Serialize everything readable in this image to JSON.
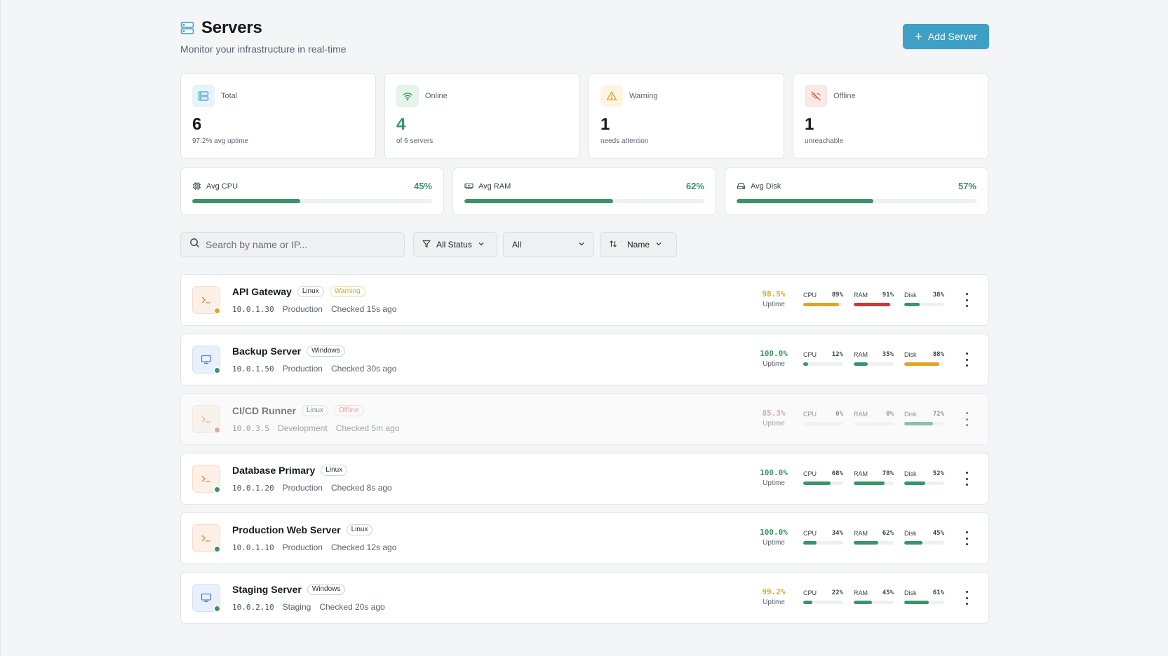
{
  "header": {
    "title": "Servers",
    "subtitle": "Monitor your infrastructure in real-time",
    "add_button": "Add Server",
    "add_icon": "+"
  },
  "stats": [
    {
      "label": "Total",
      "value": "6",
      "sub": "97.2% avg uptime",
      "icon": "server-icon",
      "color": "#3ea0c4",
      "bg": "#e6f3f8",
      "value_color": "#16191d"
    },
    {
      "label": "Online",
      "value": "4",
      "sub": "of 6 servers",
      "icon": "wifi-icon",
      "color": "#3a9468",
      "bg": "#e6f4ec",
      "value_color": "#3a9468"
    },
    {
      "label": "Warning",
      "value": "1",
      "sub": "needs attention",
      "icon": "warning-icon",
      "color": "#e0a526",
      "bg": "#fdf5e3",
      "value_color": "#16191d"
    },
    {
      "label": "Offline",
      "value": "1",
      "sub": "unreachable",
      "icon": "wifi-off-icon",
      "color": "#d7635a",
      "bg": "#fbe9e7",
      "value_color": "#16191d"
    }
  ],
  "resources": [
    {
      "label": "Avg CPU",
      "value": "45%",
      "fraction": 0.45,
      "icon": "cpu-icon"
    },
    {
      "label": "Avg RAM",
      "value": "62%",
      "fraction": 0.62,
      "icon": "memory-icon"
    },
    {
      "label": "Avg Disk",
      "value": "57%",
      "fraction": 0.57,
      "icon": "disk-icon"
    }
  ],
  "filters": {
    "search_placeholder": "Search by name or IP...",
    "status_label": "All Status",
    "type_label": "All",
    "sort_label": "Name"
  },
  "colors": {
    "ok": "#3a9468",
    "warning": "#e0a526",
    "danger": "#c9393a",
    "offline_dot": "#d7635a"
  },
  "servers": [
    {
      "name": "API Gateway",
      "os": "Linux",
      "status_badge": "Warning",
      "ip": "10.0.1.30",
      "env": "Production",
      "checked": "Checked 15s ago",
      "uptime": "98.5%",
      "uptime_label": "Uptime",
      "status": "warning",
      "metrics": [
        {
          "label": "CPU",
          "value": "89%",
          "fraction": 0.89
        },
        {
          "label": "RAM",
          "value": "91%",
          "fraction": 0.91
        },
        {
          "label": "Disk",
          "value": "38%",
          "fraction": 0.38
        }
      ]
    },
    {
      "name": "Backup Server",
      "os": "Windows",
      "status_badge": "",
      "ip": "10.0.1.50",
      "env": "Production",
      "checked": "Checked 30s ago",
      "uptime": "100.0%",
      "uptime_label": "Uptime",
      "status": "online",
      "metrics": [
        {
          "label": "CPU",
          "value": "12%",
          "fraction": 0.12
        },
        {
          "label": "RAM",
          "value": "35%",
          "fraction": 0.35
        },
        {
          "label": "Disk",
          "value": "88%",
          "fraction": 0.88
        }
      ]
    },
    {
      "name": "CI/CD Runner",
      "os": "Linux",
      "status_badge": "Offline",
      "ip": "10.0.3.5",
      "env": "Development",
      "checked": "Checked 5m ago",
      "uptime": "85.3%",
      "uptime_label": "Uptime",
      "status": "offline",
      "metrics": [
        {
          "label": "CPU",
          "value": "0%",
          "fraction": 0
        },
        {
          "label": "RAM",
          "value": "0%",
          "fraction": 0
        },
        {
          "label": "Disk",
          "value": "72%",
          "fraction": 0.72
        }
      ]
    },
    {
      "name": "Database Primary",
      "os": "Linux",
      "status_badge": "",
      "ip": "10.0.1.20",
      "env": "Production",
      "checked": "Checked 8s ago",
      "uptime": "100.0%",
      "uptime_label": "Uptime",
      "status": "online",
      "metrics": [
        {
          "label": "CPU",
          "value": "68%",
          "fraction": 0.68
        },
        {
          "label": "RAM",
          "value": "78%",
          "fraction": 0.78
        },
        {
          "label": "Disk",
          "value": "52%",
          "fraction": 0.52
        }
      ]
    },
    {
      "name": "Production Web Server",
      "os": "Linux",
      "status_badge": "",
      "ip": "10.0.1.10",
      "env": "Production",
      "checked": "Checked 12s ago",
      "uptime": "100.0%",
      "uptime_label": "Uptime",
      "status": "online",
      "metrics": [
        {
          "label": "CPU",
          "value": "34%",
          "fraction": 0.34
        },
        {
          "label": "RAM",
          "value": "62%",
          "fraction": 0.62
        },
        {
          "label": "Disk",
          "value": "45%",
          "fraction": 0.45
        }
      ]
    },
    {
      "name": "Staging Server",
      "os": "Windows",
      "status_badge": "",
      "ip": "10.0.2.10",
      "env": "Staging",
      "checked": "Checked 20s ago",
      "uptime": "99.2%",
      "uptime_label": "Uptime",
      "status": "online",
      "metrics": [
        {
          "label": "CPU",
          "value": "22%",
          "fraction": 0.22
        },
        {
          "label": "RAM",
          "value": "45%",
          "fraction": 0.45
        },
        {
          "label": "Disk",
          "value": "61%",
          "fraction": 0.61
        }
      ]
    }
  ]
}
